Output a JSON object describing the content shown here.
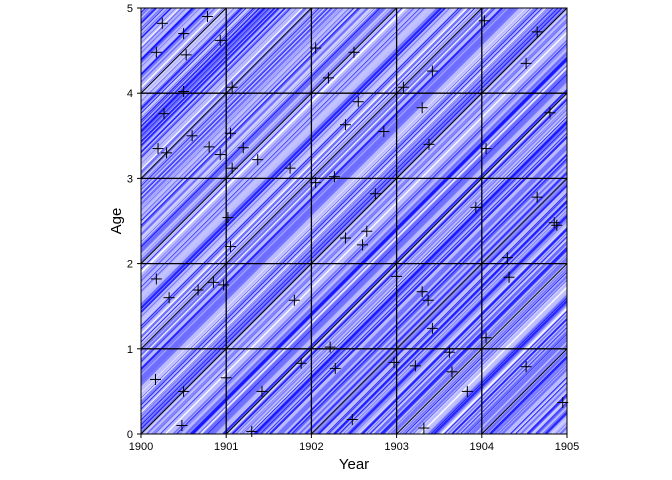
{
  "chart_data": {
    "type": "scatter",
    "title": "",
    "xlabel": "Year",
    "ylabel": "Age",
    "xlim": [
      1900,
      1905
    ],
    "ylim": [
      0,
      5
    ],
    "x_ticks": [
      "1900",
      "1901",
      "1902",
      "1903",
      "1904",
      "1905"
    ],
    "y_ticks": [
      "0",
      "1",
      "2",
      "3",
      "4",
      "5"
    ],
    "grid": true,
    "lifelines": "diagonal life lines (slope 1) in shades of blue filling the Lexis diagram",
    "colors": {
      "lifeline_dark": "#1414ff",
      "lifeline_mid": "#6a6aff",
      "lifeline_light": "#b8b8ff",
      "grid": "#000000",
      "marker": "#000000"
    },
    "points": [
      [
        1900.18,
        4.48
      ],
      [
        1900.25,
        4.82
      ],
      [
        1900.5,
        4.7
      ],
      [
        1900.53,
        4.45
      ],
      [
        1900.78,
        4.9
      ],
      [
        1900.93,
        4.62
      ],
      [
        1900.5,
        4.02
      ],
      [
        1901.07,
        4.07
      ],
      [
        1900.27,
        3.76
      ],
      [
        1900.2,
        3.35
      ],
      [
        1900.3,
        3.3
      ],
      [
        1900.6,
        3.5
      ],
      [
        1900.8,
        3.37
      ],
      [
        1900.93,
        3.28
      ],
      [
        1901.05,
        3.53
      ],
      [
        1901.2,
        3.36
      ],
      [
        1901.07,
        3.12
      ],
      [
        1901.37,
        3.22
      ],
      [
        1901.75,
        3.12
      ],
      [
        1902.05,
        4.53
      ],
      [
        1902.2,
        4.18
      ],
      [
        1902.5,
        4.48
      ],
      [
        1902.55,
        3.9
      ],
      [
        1902.4,
        3.63
      ],
      [
        1902.85,
        3.55
      ],
      [
        1902.27,
        3.02
      ],
      [
        1902.05,
        2.95
      ],
      [
        1902.75,
        2.82
      ],
      [
        1903.08,
        4.07
      ],
      [
        1903.3,
        3.83
      ],
      [
        1903.42,
        4.26
      ],
      [
        1903.38,
        3.4
      ],
      [
        1904.03,
        4.85
      ],
      [
        1904.65,
        4.72
      ],
      [
        1904.52,
        4.35
      ],
      [
        1904.05,
        3.35
      ],
      [
        1904.8,
        3.77
      ],
      [
        1904.65,
        2.78
      ],
      [
        1903.93,
        2.66
      ],
      [
        1904.85,
        2.48
      ],
      [
        1904.88,
        2.45
      ],
      [
        1901.02,
        2.54
      ],
      [
        1901.05,
        2.2
      ],
      [
        1902.4,
        2.3
      ],
      [
        1902.6,
        2.22
      ],
      [
        1902.65,
        2.38
      ],
      [
        1900.18,
        1.82
      ],
      [
        1900.33,
        1.6
      ],
      [
        1900.67,
        1.69
      ],
      [
        1900.85,
        1.78
      ],
      [
        1900.97,
        1.75
      ],
      [
        1901.8,
        1.57
      ],
      [
        1903.0,
        1.85
      ],
      [
        1903.3,
        1.67
      ],
      [
        1903.37,
        1.57
      ],
      [
        1903.42,
        1.24
      ],
      [
        1904.3,
        2.07
      ],
      [
        1904.32,
        1.84
      ],
      [
        1904.05,
        1.13
      ],
      [
        1900.17,
        0.64
      ],
      [
        1900.5,
        0.5
      ],
      [
        1901.0,
        0.66
      ],
      [
        1901.42,
        0.5
      ],
      [
        1900.48,
        0.1
      ],
      [
        1901.3,
        0.03
      ],
      [
        1901.88,
        0.83
      ],
      [
        1902.22,
        1.02
      ],
      [
        1902.28,
        0.77
      ],
      [
        1902.48,
        0.17
      ],
      [
        1902.97,
        0.84
      ],
      [
        1903.22,
        0.8
      ],
      [
        1903.62,
        0.96
      ],
      [
        1903.65,
        0.73
      ],
      [
        1903.83,
        0.5
      ],
      [
        1903.32,
        0.07
      ],
      [
        1904.52,
        0.79
      ],
      [
        1904.95,
        0.37
      ]
    ]
  }
}
